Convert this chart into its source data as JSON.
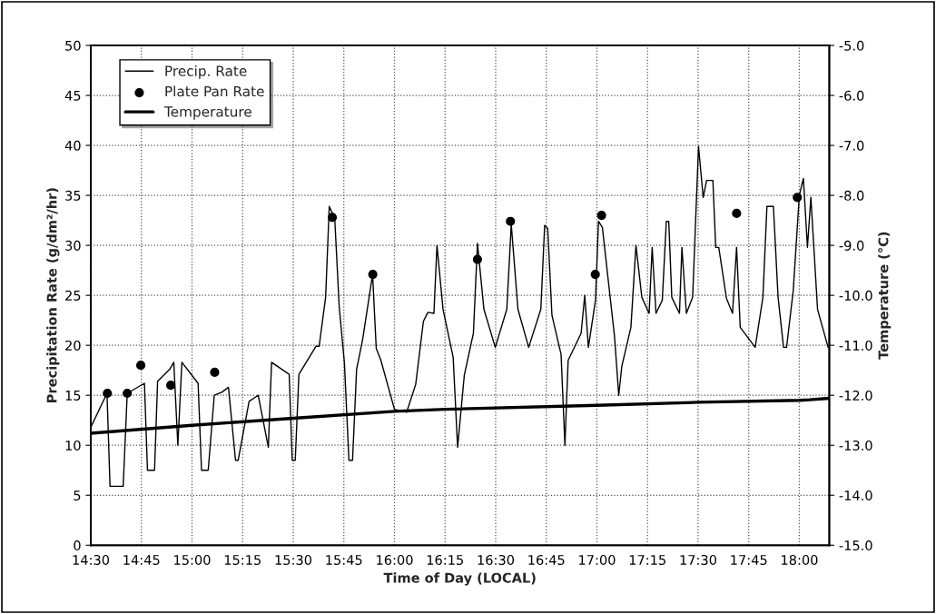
{
  "chart_data": {
    "type": "line",
    "xlabel": "Time of Day (LOCAL)",
    "ylabel": "Precipitation Rate (g/dm²/hr)",
    "y2label": "Temperature (°C)",
    "xlim": [
      14.5,
      18.148
    ],
    "xticks": [
      {
        "value": 14.5,
        "label": "14:30"
      },
      {
        "value": 14.75,
        "label": "14:45"
      },
      {
        "value": 15.0,
        "label": "15:00"
      },
      {
        "value": 15.25,
        "label": "15:15"
      },
      {
        "value": 15.5,
        "label": "15:30"
      },
      {
        "value": 15.75,
        "label": "15:45"
      },
      {
        "value": 16.0,
        "label": "16:00"
      },
      {
        "value": 16.25,
        "label": "16:15"
      },
      {
        "value": 16.5,
        "label": "16:30"
      },
      {
        "value": 16.75,
        "label": "16:45"
      },
      {
        "value": 17.0,
        "label": "17:00"
      },
      {
        "value": 17.25,
        "label": "17:15"
      },
      {
        "value": 17.5,
        "label": "17:30"
      },
      {
        "value": 17.75,
        "label": "17:45"
      },
      {
        "value": 18.0,
        "label": "18:00"
      }
    ],
    "ylim": [
      0,
      50
    ],
    "yticks": [
      0,
      5,
      10,
      15,
      20,
      25,
      30,
      35,
      40,
      45,
      50
    ],
    "y2lim": [
      -15,
      -5
    ],
    "y2ticks": [
      {
        "value": -15,
        "label": "-15.0"
      },
      {
        "value": -14,
        "label": "-14.0"
      },
      {
        "value": -13,
        "label": "-13.0"
      },
      {
        "value": -12,
        "label": "-12.0"
      },
      {
        "value": -11,
        "label": "-11.0"
      },
      {
        "value": -10,
        "label": "-10.0"
      },
      {
        "value": -9,
        "label": "-9.0"
      },
      {
        "value": -8,
        "label": "-8.0"
      },
      {
        "value": -7,
        "label": "-7.0"
      },
      {
        "value": -6,
        "label": "-6.0"
      },
      {
        "value": -5,
        "label": "-5.0"
      }
    ],
    "grid": true,
    "legend": "top left",
    "series": [
      {
        "name": "Precip. Rate",
        "color": "#000000",
        "marker": "none",
        "x": [
          14.5,
          14.5,
          14.58,
          14.595,
          14.66,
          14.68,
          14.765,
          14.78,
          14.815,
          14.83,
          14.89,
          14.91,
          14.93,
          14.95,
          15.03,
          15.047,
          15.08,
          15.11,
          15.147,
          15.18,
          15.215,
          15.228,
          15.282,
          15.327,
          15.377,
          15.393,
          15.48,
          15.495,
          15.51,
          15.528,
          15.612,
          15.628,
          15.66,
          15.678,
          15.705,
          15.727,
          15.753,
          15.775,
          15.793,
          15.813,
          15.843,
          15.892,
          15.91,
          15.933,
          16.0,
          16.06,
          16.105,
          16.143,
          16.165,
          16.195,
          16.21,
          16.24,
          16.29,
          16.312,
          16.345,
          16.39,
          16.41,
          16.442,
          16.498,
          16.555,
          16.577,
          16.61,
          16.663,
          16.723,
          16.742,
          16.757,
          16.778,
          16.823,
          16.842,
          16.858,
          16.922,
          16.94,
          16.958,
          16.993,
          17.008,
          17.027,
          17.087,
          17.108,
          17.123,
          17.168,
          17.193,
          17.222,
          17.258,
          17.273,
          17.292,
          17.323,
          17.343,
          17.355,
          17.37,
          17.408,
          17.42,
          17.442,
          17.473,
          17.502,
          17.525,
          17.542,
          17.573,
          17.587,
          17.602,
          17.64,
          17.67,
          17.69,
          17.708,
          17.782,
          17.82,
          17.84,
          17.872,
          17.895,
          17.922,
          17.937,
          17.97,
          18.0,
          18.02,
          18.04,
          18.057,
          18.09,
          18.142
        ],
        "values": [
          1.6,
          11.8,
          15.2,
          5.9,
          5.9,
          15.2,
          16.2,
          7.5,
          7.5,
          16.4,
          17.6,
          18.3,
          10.0,
          18.3,
          16.2,
          7.5,
          7.5,
          15.0,
          15.3,
          15.8,
          8.5,
          8.5,
          14.4,
          15.0,
          9.8,
          18.3,
          17.1,
          8.5,
          8.5,
          17.1,
          19.9,
          19.9,
          24.8,
          33.9,
          32.7,
          23.9,
          18.2,
          8.5,
          8.5,
          17.6,
          20.6,
          27.1,
          19.7,
          18.5,
          13.6,
          13.3,
          16.1,
          22.4,
          23.3,
          23.2,
          30.0,
          23.6,
          18.8,
          9.8,
          17.0,
          21.2,
          30.2,
          23.6,
          19.8,
          23.6,
          32.1,
          23.6,
          19.8,
          23.6,
          32.0,
          31.7,
          23.0,
          19.1,
          10.0,
          18.5,
          21.2,
          25.0,
          19.8,
          24.5,
          32.4,
          31.8,
          20.9,
          15.0,
          17.9,
          21.8,
          30.0,
          24.8,
          23.2,
          29.8,
          23.2,
          24.5,
          32.4,
          32.4,
          24.8,
          23.2,
          29.8,
          23.2,
          24.8,
          39.9,
          34.8,
          36.5,
          36.5,
          29.8,
          29.8,
          24.7,
          23.2,
          29.8,
          21.8,
          19.8,
          24.8,
          33.9,
          33.9,
          24.8,
          19.8,
          19.8,
          25.5,
          35.0,
          36.7,
          29.8,
          34.8,
          23.6,
          19.8
        ]
      },
      {
        "name": "Plate Pan Rate",
        "type": "scatter",
        "color": "#000000",
        "marker": "circle",
        "x": [
          14.582,
          14.68,
          14.747,
          14.895,
          15.112,
          15.693,
          15.893,
          16.41,
          16.573,
          16.992,
          17.023,
          17.69,
          17.99
        ],
        "values": [
          15.2,
          15.2,
          18.0,
          16.0,
          17.3,
          32.8,
          27.1,
          28.6,
          32.4,
          27.1,
          33.0,
          33.2,
          34.8
        ]
      },
      {
        "name": "Temperature",
        "axis": "y2",
        "color": "#000000",
        "marker": "none",
        "x": [
          14.5,
          15.0,
          15.5,
          16.0,
          16.25,
          17.0,
          17.5,
          18.0,
          18.05,
          18.148
        ],
        "values": [
          -12.76,
          -12.6,
          -12.46,
          -12.32,
          -12.28,
          -12.2,
          -12.14,
          -12.1,
          -12.09,
          -12.06
        ]
      }
    ]
  }
}
